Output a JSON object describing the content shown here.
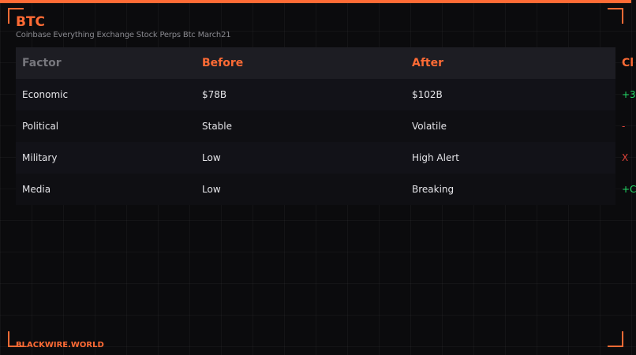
{
  "header": {
    "title": "BTC",
    "subtitle": "Coinbase Everything Exchange Stock Perps Btc March21"
  },
  "table": {
    "columns": [
      "Factor",
      "Before",
      "After",
      "Cl"
    ],
    "rows": [
      {
        "factor": "Economic",
        "before": "$78B",
        "after": "$102B",
        "change": "+3"
      },
      {
        "factor": "Political",
        "before": "Stable",
        "after": "Volatile",
        "change": "-"
      },
      {
        "factor": "Military",
        "before": "Low",
        "after": "High Alert",
        "change": "X"
      },
      {
        "factor": "Media",
        "before": "Low",
        "after": "Breaking",
        "change": "+C"
      }
    ]
  },
  "footer": {
    "brand": "BLACKWIRE.WORLD"
  },
  "colors": {
    "accent": "#ff6b35",
    "positive": "#22dd66",
    "negative": "#e0443a"
  }
}
